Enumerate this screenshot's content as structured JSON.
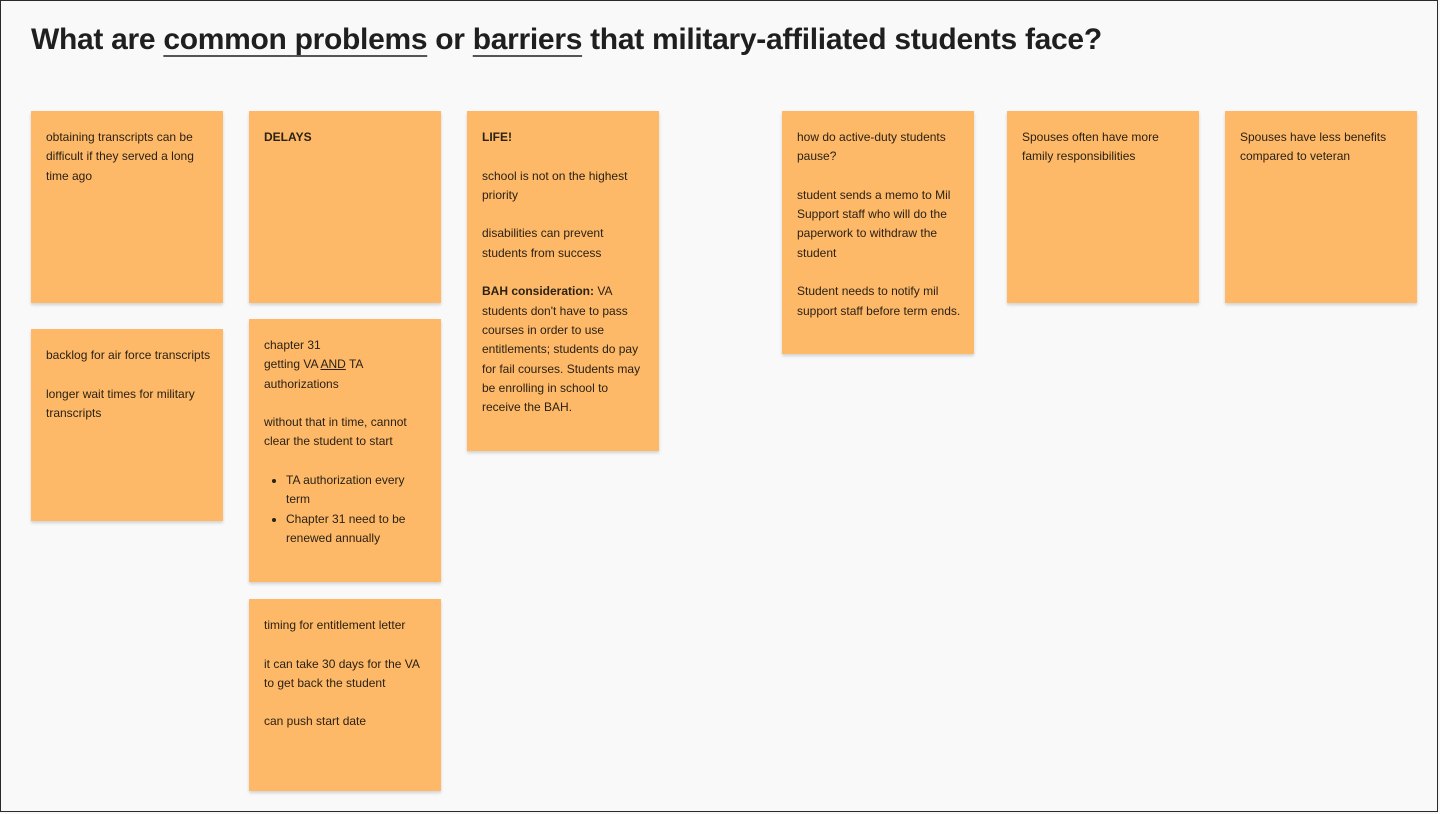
{
  "title": {
    "part1": "What are ",
    "common": "common",
    "space1": " ",
    "problems": "problems",
    "part2": " or ",
    "barriers": "barriers",
    "part3": " that military-affiliated students face?"
  },
  "notes": {
    "transcripts": {
      "text": "obtaining transcripts can be difficult if they served a long time ago"
    },
    "backlog": {
      "line1": "backlog for air force transcripts",
      "line2": "longer wait times for military transcripts"
    },
    "delays": {
      "heading": "DELAYS"
    },
    "chapter31": {
      "line1": "chapter 31",
      "line2_pre": "getting VA ",
      "line2_and": "AND",
      "line2_post": " TA authorizations",
      "line3": "without that in time, cannot clear the student to start",
      "bullets": [
        "TA authorization every term",
        "Chapter 31 need to be renewed annually"
      ]
    },
    "entitlement": {
      "line1": "timing for entitlement letter",
      "line2": "it can take 30 days for the VA to get back the student",
      "line3": "can push start date"
    },
    "life": {
      "heading": "LIFE!",
      "line1": "school is not on the highest priority",
      "line2": "disabilities can prevent students from success",
      "bah_label": "BAH consideration:",
      "bah_text": " VA students don't have to pass courses in order to use entitlements; students do pay for fail courses. Students may be enrolling in school to receive the BAH."
    },
    "pause": {
      "line1": "how do active-duty students pause?",
      "line2": "student sends a memo to Mil Support staff who will do the paperwork to withdraw the student",
      "line3": "Student needs to notify mil support staff before term ends."
    },
    "spouses_family": {
      "text": "Spouses often have more family responsibilities"
    },
    "spouses_benefits": {
      "text": "Spouses have less benefits compared to veteran"
    }
  },
  "colors": {
    "note": "#fdb968",
    "background": "#f9f9f9",
    "text": "#1f1f1f"
  }
}
